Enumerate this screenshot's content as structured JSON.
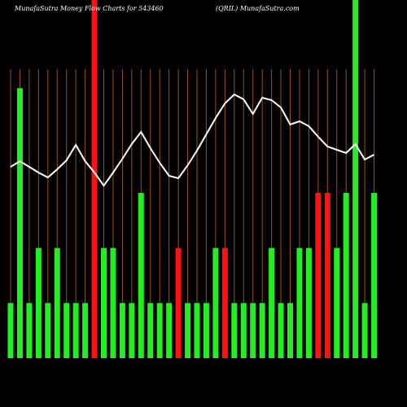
{
  "chart_data": {
    "type": "bar",
    "title": "MunafaSutra  Money Flow  Charts for 543460",
    "subtitle": "(QRIL) MunafaSutra.com",
    "values": [
      1,
      4.9,
      1,
      2,
      1,
      2,
      1,
      1,
      1,
      6.5,
      2,
      2,
      1,
      1,
      3,
      1,
      1,
      1,
      2,
      1,
      1,
      1,
      2,
      2,
      1,
      1,
      1,
      1,
      2,
      1,
      1,
      2,
      2,
      3,
      3,
      2,
      3,
      6.5,
      1,
      3
    ],
    "colors": [
      "#22ee22",
      "#22ee22",
      "#22ee22",
      "#22ee22",
      "#22ee22",
      "#22ee22",
      "#22ee22",
      "#22ee22",
      "#22ee22",
      "#ff1111",
      "#22ee22",
      "#22ee22",
      "#22ee22",
      "#22ee22",
      "#22ee22",
      "#22ee22",
      "#22ee22",
      "#22ee22",
      "#ff1111",
      "#22ee22",
      "#22ee22",
      "#22ee22",
      "#22ee22",
      "#ff1111",
      "#22ee22",
      "#22ee22",
      "#22ee22",
      "#22ee22",
      "#22ee22",
      "#22ee22",
      "#22ee22",
      "#22ee22",
      "#22ee22",
      "#ff1111",
      "#ff1111",
      "#22ee22",
      "#22ee22",
      "#22ee22",
      "#22ee22",
      "#22ee22"
    ],
    "ylim": [
      0,
      6.5
    ],
    "line": {
      "color": "#ffffff",
      "axis": "y2",
      "values": [
        235,
        242,
        235,
        228,
        222,
        232,
        243,
        262,
        242,
        228,
        212,
        228,
        245,
        263,
        278,
        258,
        240,
        224,
        221,
        237,
        255,
        275,
        295,
        313,
        324,
        318,
        300,
        320,
        317,
        308,
        287,
        291,
        285,
        272,
        260,
        256,
        252,
        263,
        244,
        250
      ]
    },
    "y2lim": [
      0,
      440
    ],
    "gridline_color": "#a05010"
  }
}
